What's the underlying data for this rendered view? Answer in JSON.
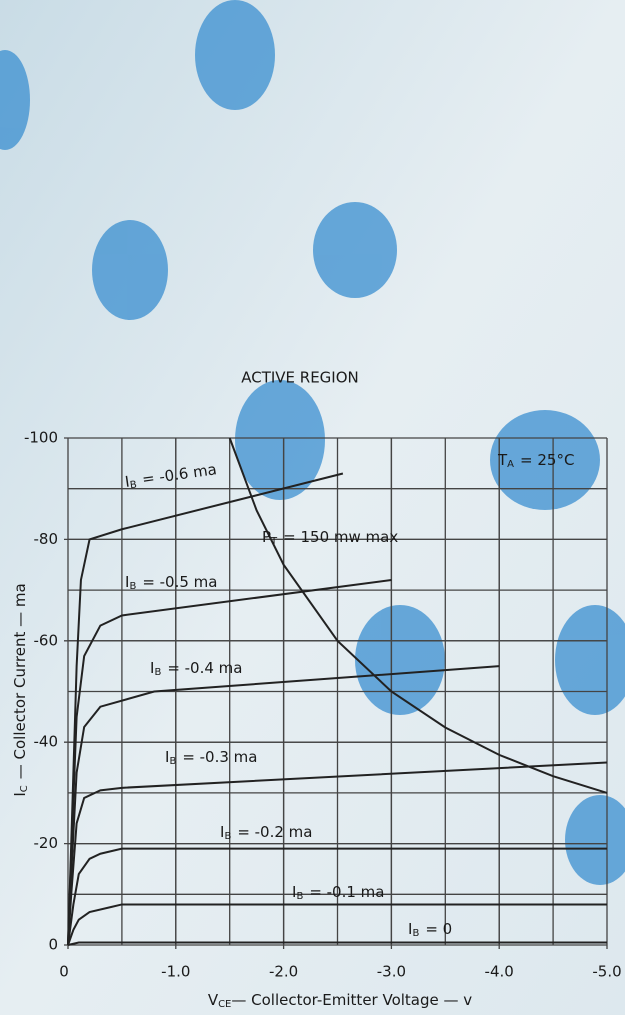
{
  "chart_data": {
    "type": "line",
    "title": "ACTIVE REGION",
    "x_label": {
      "symbol": "V",
      "subscript": "CE",
      "text": "— Collector-Emitter Voltage — v"
    },
    "y_label": {
      "symbol": "I",
      "subscript": "C",
      "text": "— Collector Current — ma"
    },
    "series_symbol": {
      "symbol": "I",
      "subscript": "B"
    },
    "color": "#222222",
    "series": [
      {
        "name": "= -0.6 ma",
        "x": [
          0,
          -0.03,
          -0.08,
          -0.12,
          -0.2,
          -0.5,
          -2.55
        ],
        "values": [
          0,
          -20,
          -55,
          -72,
          -80,
          -82,
          -93
        ]
      },
      {
        "name": "= -0.5 ma",
        "x": [
          0,
          -0.03,
          -0.08,
          -0.15,
          -0.3,
          -0.5,
          -3.0
        ],
        "values": [
          0,
          -18,
          -45,
          -57,
          -63,
          -65,
          -72
        ]
      },
      {
        "name": "= -0.4 ma",
        "x": [
          0,
          -0.03,
          -0.08,
          -0.15,
          -0.3,
          -0.8,
          -4.0
        ],
        "values": [
          0,
          -14,
          -34,
          -43,
          -47,
          -50,
          -55
        ]
      },
      {
        "name": "= -0.3 ma",
        "x": [
          0,
          -0.03,
          -0.08,
          -0.15,
          -0.3,
          -0.5,
          -5.0
        ],
        "values": [
          0,
          -10,
          -24,
          -29,
          -30.5,
          -31,
          -36
        ]
      },
      {
        "name": "= -0.2 ma",
        "x": [
          0,
          -0.05,
          -0.1,
          -0.2,
          -0.3,
          -0.5,
          -5.0
        ],
        "values": [
          0,
          -8,
          -14,
          -17,
          -18,
          -19,
          -19
        ]
      },
      {
        "name": "= -0.1 ma",
        "x": [
          0,
          -0.05,
          -0.1,
          -0.2,
          -0.4,
          -0.5,
          -5.0
        ],
        "values": [
          0,
          -3,
          -5,
          -6.5,
          -7.5,
          -8,
          -8
        ]
      },
      {
        "name": "= 0",
        "x": [
          0,
          -0.1,
          -5.0
        ],
        "values": [
          0,
          -0.5,
          -0.5
        ]
      }
    ],
    "power_curve": {
      "x": [
        -1.5,
        -1.75,
        -2.0,
        -2.5,
        -3.0,
        -3.5,
        -4.0,
        -4.5,
        -5.0
      ],
      "values": [
        -100,
        -85.7,
        -75,
        -60,
        -50,
        -42.9,
        -37.5,
        -33.3,
        -30
      ]
    },
    "annotations": [
      {
        "symbol": "P",
        "subscript": "T",
        "text": "= 150 mw max"
      },
      {
        "symbol": "T",
        "subscript": "A",
        "text": "= 25°C"
      }
    ],
    "xlim": [
      0,
      -5.0
    ],
    "ylim": [
      0,
      -100
    ],
    "xticks": [
      0,
      {
        "value": -1.0,
        "label": "-1.0"
      },
      {
        "value": -2.0,
        "label": "-2.0"
      },
      {
        "value": -3.0,
        "label": "-3.0"
      },
      {
        "value": -4.0,
        "label": "-4.0"
      },
      {
        "value": -5.0,
        "label": "-5.0"
      }
    ],
    "yticks": [
      0,
      -20,
      -40,
      -60,
      -80,
      -100
    ],
    "xgrid": [
      -0.5,
      -1.0,
      -1.5,
      -2.0,
      -2.5,
      -3.0,
      -3.5,
      -4.0,
      -4.5
    ],
    "ygrid": [
      -10,
      -20,
      -30,
      -40,
      -50,
      -60,
      -70,
      -80,
      -90
    ],
    "grid": true
  }
}
